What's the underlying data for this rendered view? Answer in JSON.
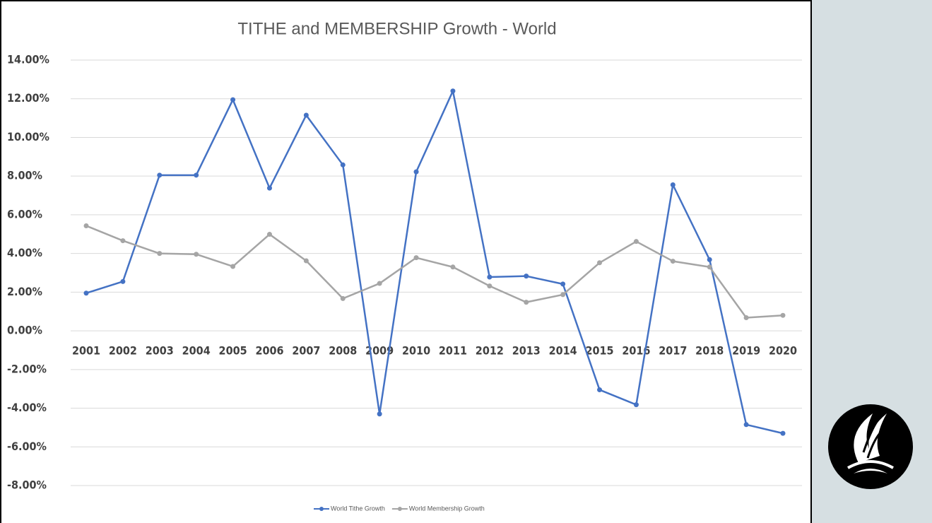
{
  "chart_data": {
    "type": "line",
    "title": "TITHE and MEMBERSHIP Growth - World",
    "categories": [
      "2001",
      "2002",
      "2003",
      "2004",
      "2005",
      "2006",
      "2007",
      "2008",
      "2009",
      "2010",
      "2011",
      "2012",
      "2013",
      "2014",
      "2015",
      "2016",
      "2017",
      "2018",
      "2019",
      "2020"
    ],
    "series": [
      {
        "name": "World Tithe Growth",
        "color": "#4472c4",
        "values": [
          1.95,
          2.55,
          8.05,
          8.05,
          11.95,
          7.38,
          11.15,
          8.58,
          -4.3,
          8.22,
          12.4,
          2.78,
          2.83,
          2.42,
          -3.05,
          -3.82,
          7.55,
          3.68,
          -4.85,
          -5.3
        ]
      },
      {
        "name": "World Membership Growth",
        "color": "#a5a5a5",
        "values": [
          5.43,
          4.66,
          4.0,
          3.96,
          3.33,
          4.99,
          3.62,
          1.67,
          2.45,
          3.78,
          3.3,
          2.32,
          1.48,
          1.87,
          3.52,
          4.62,
          3.6,
          3.3,
          0.68,
          0.8
        ]
      }
    ],
    "ylim": [
      -8,
      14
    ],
    "yticks": [
      {
        "value": -8,
        "label": "-8.00%"
      },
      {
        "value": -6,
        "label": "-6.00%"
      },
      {
        "value": -4,
        "label": "-4.00%"
      },
      {
        "value": -2,
        "label": "-2.00%"
      },
      {
        "value": 0,
        "label": "0.00%"
      },
      {
        "value": 2,
        "label": "2.00%"
      },
      {
        "value": 4,
        "label": "4.00%"
      },
      {
        "value": 6,
        "label": "6.00%"
      },
      {
        "value": 8,
        "label": "8.00%"
      },
      {
        "value": 10,
        "label": "10.00%"
      },
      {
        "value": 12,
        "label": "12.00%"
      },
      {
        "value": 14,
        "label": "14.00%"
      }
    ],
    "grid": true,
    "legend": "bottom"
  }
}
